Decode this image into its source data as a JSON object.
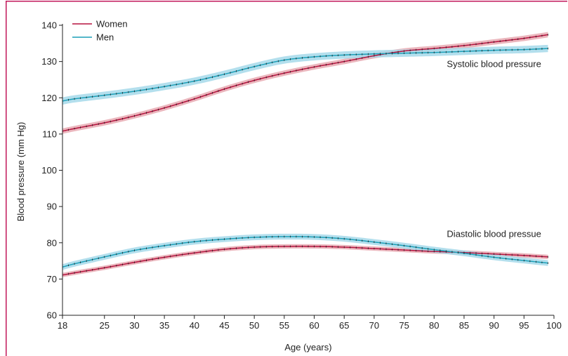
{
  "colors": {
    "frame": "#c2185b",
    "women_line": "#b5123e",
    "women_band": "#e7a9b2",
    "men_line": "#1b9fb8",
    "men_band": "#a6d9ea",
    "axis": "#222222",
    "marker": "#222222"
  },
  "chart_data": {
    "type": "line",
    "title": "",
    "xlabel": "Age (years)",
    "ylabel": "Blood pressure (mm Hg)",
    "xlim": [
      18,
      100
    ],
    "ylim": [
      60,
      140
    ],
    "xticks": [
      18,
      25,
      30,
      35,
      40,
      45,
      50,
      55,
      60,
      65,
      70,
      75,
      80,
      85,
      90,
      95,
      100
    ],
    "yticks": [
      60,
      70,
      80,
      90,
      100,
      110,
      120,
      130,
      140
    ],
    "grid": false,
    "legend": {
      "position": "top-left",
      "entries": [
        "Women",
        "Men"
      ]
    },
    "annotations": [
      {
        "text": "Systolic blood pressure",
        "x": 90,
        "y": 128.5
      },
      {
        "text": "Diastolic blood pressue",
        "x": 90,
        "y": 81.6
      }
    ],
    "x": [
      18,
      20,
      25,
      30,
      35,
      40,
      45,
      50,
      55,
      60,
      65,
      70,
      75,
      80,
      85,
      90,
      95,
      99
    ],
    "series": [
      {
        "name": "Women",
        "group": "systolic",
        "band_halfwidth": 0.75,
        "values": [
          110.8,
          111.5,
          113.1,
          115.0,
          117.2,
          119.7,
          122.4,
          124.8,
          126.8,
          128.5,
          130.0,
          131.6,
          132.9,
          133.6,
          134.4,
          135.4,
          136.4,
          137.4
        ]
      },
      {
        "name": "Men",
        "group": "systolic",
        "band_halfwidth": 1.0,
        "values": [
          119.1,
          119.7,
          120.7,
          121.8,
          123.1,
          124.6,
          126.5,
          128.6,
          130.4,
          131.3,
          131.8,
          132.1,
          132.3,
          132.5,
          132.8,
          133.1,
          133.3,
          133.6
        ]
      },
      {
        "name": "Women",
        "group": "diastolic",
        "band_halfwidth": 0.6,
        "values": [
          71.1,
          71.7,
          73.1,
          74.6,
          76.0,
          77.2,
          78.2,
          78.8,
          79.0,
          79.0,
          78.8,
          78.4,
          78.0,
          77.6,
          77.3,
          76.9,
          76.5,
          76.1
        ]
      },
      {
        "name": "Men",
        "group": "diastolic",
        "band_halfwidth": 0.8,
        "values": [
          73.3,
          74.2,
          76.1,
          77.9,
          79.2,
          80.3,
          81.0,
          81.5,
          81.7,
          81.6,
          81.1,
          80.2,
          79.2,
          78.1,
          77.1,
          76.0,
          75.1,
          74.4
        ]
      }
    ]
  }
}
